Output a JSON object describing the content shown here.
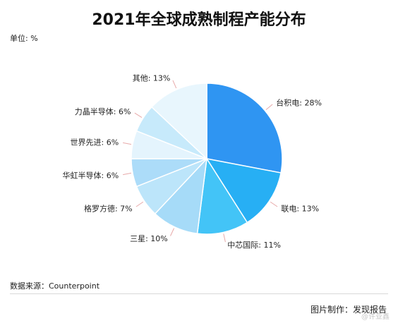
{
  "header": {
    "title": "2021年全球成熟制程产能分布",
    "unit": "单位: %"
  },
  "footer": {
    "source": "数据来源：Counterpoint",
    "credit": "图片制作：发现报告",
    "watermark": "@许亚鑫"
  },
  "chart_data": {
    "type": "pie",
    "title": "2021年全球成熟制程产能分布",
    "unit": "%",
    "slices": [
      {
        "label": "台积电: 28%",
        "value": 28,
        "color": "#2f95f2"
      },
      {
        "label": "联电: 13%",
        "value": 13,
        "color": "#27aff4"
      },
      {
        "label": "中芯国际: 11%",
        "value": 11,
        "color": "#43c4f7"
      },
      {
        "label": "三星: 10%",
        "value": 10,
        "color": "#a6dbf8"
      },
      {
        "label": "格罗方德: 7%",
        "value": 7,
        "color": "#bce5fa"
      },
      {
        "label": "华虹半导体: 6%",
        "value": 6,
        "color": "#acdcf9"
      },
      {
        "label": "世界先进: 6%",
        "value": 6,
        "color": "#e4f4fd"
      },
      {
        "label": "力晶半导体: 6%",
        "value": 6,
        "color": "#c7eafb"
      },
      {
        "label": "其他: 13%",
        "value": 13,
        "color": "#e8f6fd"
      }
    ]
  }
}
